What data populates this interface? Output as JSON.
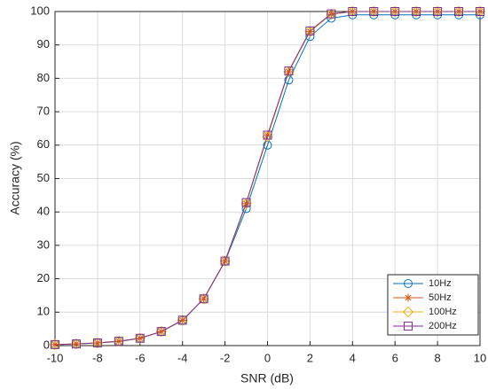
{
  "chart_data": {
    "type": "line",
    "xlabel": "SNR (dB)",
    "ylabel": "Accuracy (%)",
    "x": [
      -10,
      -9,
      -8,
      -7,
      -6,
      -5,
      -4,
      -3,
      -2,
      -1,
      0,
      1,
      2,
      3,
      4,
      5,
      6,
      7,
      8,
      9,
      10
    ],
    "series": [
      {
        "name": "10Hz",
        "color": "#0072BD",
        "marker": "circle",
        "values": [
          0.3,
          0.5,
          0.8,
          1.2,
          2.2,
          4.2,
          7.5,
          14,
          25.2,
          41,
          60,
          79.5,
          92.5,
          98,
          99,
          99,
          99,
          99,
          99,
          99,
          99
        ]
      },
      {
        "name": "50Hz",
        "color": "#D95319",
        "marker": "star",
        "values": [
          0.3,
          0.5,
          0.8,
          1.3,
          2.2,
          4.2,
          7.6,
          14,
          25.3,
          42.5,
          63,
          82,
          94,
          99.2,
          100,
          100,
          100,
          100,
          100,
          100,
          100
        ]
      },
      {
        "name": "100Hz",
        "color": "#EDB120",
        "marker": "diamond",
        "values": [
          0.3,
          0.5,
          0.8,
          1.3,
          2.2,
          4.2,
          7.6,
          14,
          25.3,
          42.5,
          62.5,
          82,
          94,
          99.2,
          100,
          100,
          100,
          100,
          100,
          100,
          100
        ]
      },
      {
        "name": "200Hz",
        "color": "#7E2F8E",
        "marker": "square",
        "values": [
          0.3,
          0.5,
          0.8,
          1.3,
          2.2,
          4.2,
          7.6,
          14,
          25.3,
          42.8,
          63,
          82.2,
          94.2,
          99.3,
          100,
          100,
          100,
          100,
          100,
          100,
          100
        ]
      }
    ],
    "xlim": [
      -10,
      10
    ],
    "xticks": [
      -10,
      -8,
      -6,
      -4,
      -2,
      0,
      2,
      4,
      6,
      8,
      10
    ],
    "ylim": [
      0,
      100
    ],
    "yticks": [
      0,
      10,
      20,
      30,
      40,
      50,
      60,
      70,
      80,
      90,
      100
    ],
    "grid": true,
    "legend": "lower right"
  }
}
